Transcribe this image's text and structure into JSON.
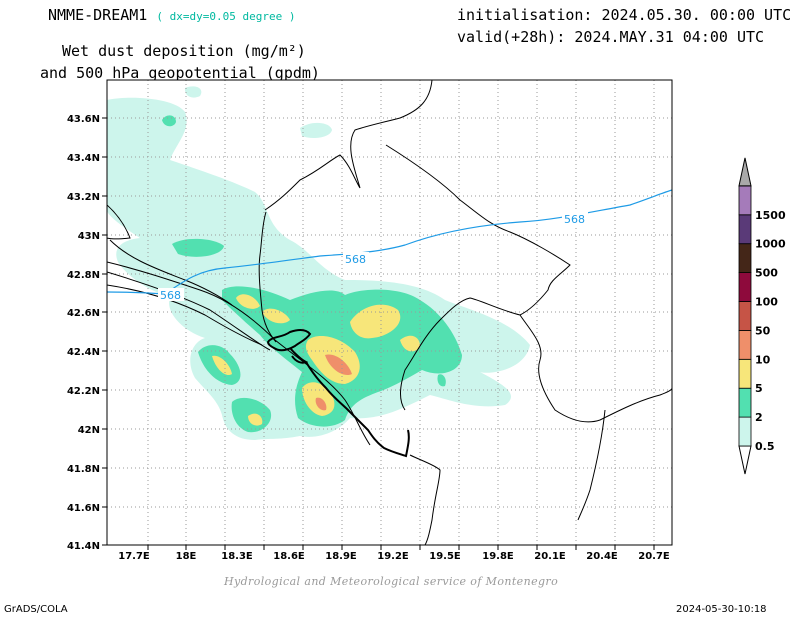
{
  "header": {
    "model": "NMME-DREAM1",
    "resolution": "( dx=dy=0.05 degree )",
    "initialisation": "initialisation: 2024.05.30. 00:00 UTC",
    "valid": "valid(+28h): 2024.MAY.31 04:00 UTC",
    "title_line1": "Wet dust deposition (mg/m²)",
    "title_line2": "and 500 hPa geopotential (gpdm)"
  },
  "axes": {
    "x_ticks": [
      "17.7E",
      "18E",
      "18.3E",
      "18.6E",
      "18.9E",
      "19.2E",
      "19.5E",
      "19.8E",
      "20.1E",
      "20.4E",
      "20.7E"
    ],
    "y_ticks": [
      "43.6N",
      "43.4N",
      "43.2N",
      "43N",
      "42.8N",
      "42.6N",
      "42.4N",
      "42.2N",
      "42N",
      "41.8N",
      "41.6N",
      "41.4N"
    ]
  },
  "legend": {
    "levels": [
      "0.5",
      "2",
      "5",
      "10",
      "50",
      "100",
      "500",
      "1000",
      "1500"
    ],
    "colors": [
      "#cdf5ec",
      "#52e0b0",
      "#f7e67a",
      "#ef8f6a",
      "#c65446",
      "#8e0a3c",
      "#442618",
      "#5a3a78",
      "#a57bba"
    ],
    "top_arrow_color": "#a9a9a9"
  },
  "contour_labels": [
    "568",
    "568",
    "568"
  ],
  "footer": {
    "credit": "Hydrological and Meteorological service of Montenegro",
    "software": "GrADS/COLA",
    "timestamp": "2024-05-30-10:18"
  }
}
